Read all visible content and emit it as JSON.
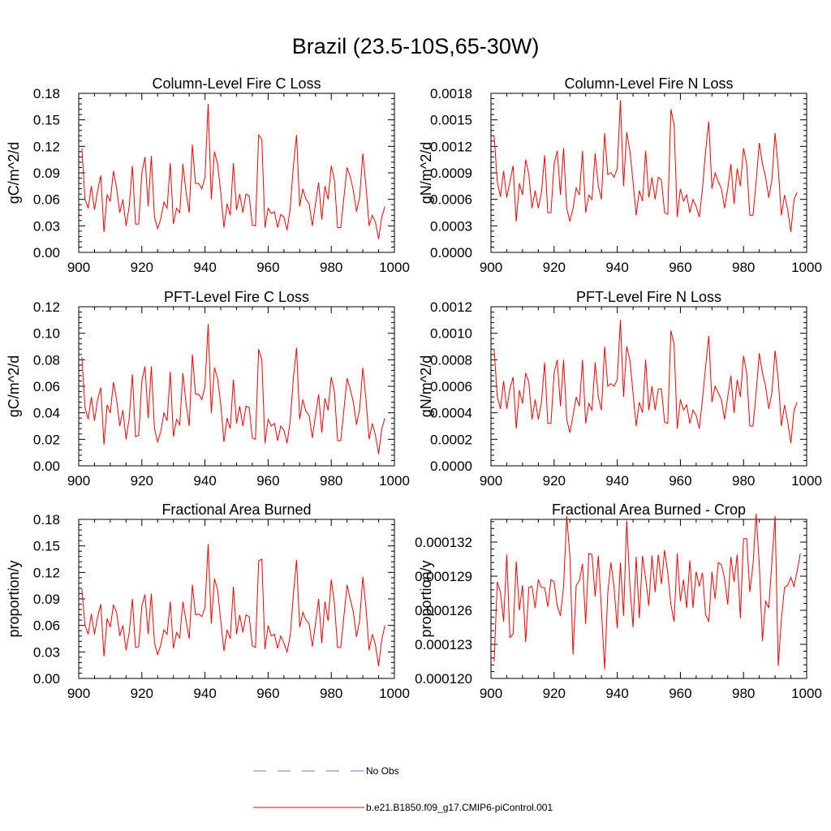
{
  "title": "Brazil (23.5-10S,65-30W)",
  "colors": {
    "series": "#ff0000",
    "obs": "#6b7fb3",
    "axis": "#000000"
  },
  "legend": [
    {
      "label": "No Obs",
      "color": "#6b7fb3",
      "style": "dashed"
    },
    {
      "label": "b.e21.B1850.f09_g17.CMIP6-piControl.001",
      "color": "#ff0000",
      "style": "solid"
    }
  ],
  "chart_data": [
    {
      "type": "line",
      "title": "Column-Level Fire C Loss",
      "ylabel": "gC/m^2/d",
      "xlabel": "",
      "xlim": [
        900,
        1000
      ],
      "ylim": [
        0,
        0.18
      ],
      "xticks": [
        "900",
        "920",
        "940",
        "960",
        "980",
        "1000"
      ],
      "yticks": [
        "0.00",
        "0.03",
        "0.06",
        "0.09",
        "0.12",
        "0.15",
        "0.18"
      ],
      "x_start": 901,
      "values": [
        0.118,
        0.06,
        0.05,
        0.075,
        0.048,
        0.07,
        0.087,
        0.023,
        0.065,
        0.058,
        0.092,
        0.073,
        0.045,
        0.06,
        0.03,
        0.052,
        0.098,
        0.032,
        0.032,
        0.09,
        0.108,
        0.052,
        0.109,
        0.04,
        0.027,
        0.038,
        0.057,
        0.05,
        0.101,
        0.032,
        0.05,
        0.045,
        0.1,
        0.068,
        0.045,
        0.122,
        0.078,
        0.078,
        0.072,
        0.085,
        0.168,
        0.06,
        0.114,
        0.1,
        0.068,
        0.028,
        0.055,
        0.042,
        0.101,
        0.048,
        0.066,
        0.045,
        0.066,
        0.064,
        0.031,
        0.03,
        0.133,
        0.128,
        0.028,
        0.05,
        0.044,
        0.046,
        0.028,
        0.043,
        0.04,
        0.025,
        0.05,
        0.098,
        0.133,
        0.052,
        0.072,
        0.06,
        0.055,
        0.03,
        0.055,
        0.079,
        0.037,
        0.075,
        0.06,
        0.098,
        0.082,
        0.028,
        0.028,
        0.062,
        0.096,
        0.086,
        0.07,
        0.046,
        0.063,
        0.112,
        0.075,
        0.03,
        0.042,
        0.034,
        0.015,
        0.04,
        0.052
      ]
    },
    {
      "type": "line",
      "title": "Column-Level Fire N Loss",
      "ylabel": "gN/m^2/d",
      "xlabel": "",
      "xlim": [
        900,
        1000
      ],
      "ylim": [
        0,
        0.0018
      ],
      "xticks": [
        "900",
        "920",
        "940",
        "960",
        "980",
        "1000"
      ],
      "yticks": [
        "0.0000",
        "0.0003",
        "0.0006",
        "0.0009",
        "0.0012",
        "0.0015",
        "0.0018"
      ],
      "x_start": 901,
      "values": [
        0.00132,
        0.0008,
        0.00063,
        0.00092,
        0.00062,
        0.0008,
        0.00098,
        0.00035,
        0.00078,
        0.00065,
        0.00105,
        0.00088,
        0.0005,
        0.0007,
        0.0005,
        0.00068,
        0.0011,
        0.00045,
        0.00045,
        0.001,
        0.00115,
        0.00065,
        0.00118,
        0.0005,
        0.00035,
        0.0005,
        0.00073,
        0.00065,
        0.00115,
        0.00045,
        0.00065,
        0.0006,
        0.00112,
        0.00075,
        0.0006,
        0.00135,
        0.00088,
        0.0009,
        0.00085,
        0.00095,
        0.00172,
        0.00075,
        0.00136,
        0.00115,
        0.0008,
        0.00042,
        0.0007,
        0.00058,
        0.00115,
        0.00062,
        0.00085,
        0.0006,
        0.00085,
        0.00082,
        0.00045,
        0.00043,
        0.00162,
        0.00145,
        0.0004,
        0.00072,
        0.00058,
        0.00065,
        0.00045,
        0.0006,
        0.00052,
        0.0004,
        0.00072,
        0.00115,
        0.00148,
        0.00072,
        0.0009,
        0.0008,
        0.00072,
        0.0005,
        0.00072,
        0.001,
        0.00055,
        0.00095,
        0.00075,
        0.00118,
        0.001,
        0.00042,
        0.00042,
        0.0008,
        0.00124,
        0.001,
        0.00085,
        0.00062,
        0.00082,
        0.00135,
        0.00095,
        0.00042,
        0.00065,
        0.00048,
        0.00023,
        0.0006,
        0.00068
      ]
    },
    {
      "type": "line",
      "title": "PFT-Level Fire C Loss",
      "ylabel": "gC/m^2/d",
      "xlabel": "",
      "xlim": [
        900,
        1000
      ],
      "ylim": [
        0,
        0.12
      ],
      "xticks": [
        "900",
        "920",
        "940",
        "960",
        "980",
        "1000"
      ],
      "yticks": [
        "0.00",
        "0.02",
        "0.04",
        "0.06",
        "0.08",
        "0.10",
        "0.12"
      ],
      "x_start": 901,
      "values": [
        0.082,
        0.044,
        0.035,
        0.052,
        0.034,
        0.05,
        0.059,
        0.016,
        0.046,
        0.04,
        0.063,
        0.05,
        0.03,
        0.042,
        0.02,
        0.036,
        0.069,
        0.022,
        0.023,
        0.064,
        0.075,
        0.036,
        0.075,
        0.028,
        0.018,
        0.026,
        0.04,
        0.034,
        0.071,
        0.022,
        0.035,
        0.031,
        0.07,
        0.047,
        0.03,
        0.084,
        0.054,
        0.054,
        0.05,
        0.06,
        0.107,
        0.04,
        0.074,
        0.066,
        0.046,
        0.018,
        0.036,
        0.028,
        0.065,
        0.032,
        0.045,
        0.03,
        0.045,
        0.044,
        0.021,
        0.02,
        0.088,
        0.08,
        0.017,
        0.035,
        0.03,
        0.032,
        0.019,
        0.03,
        0.027,
        0.017,
        0.034,
        0.066,
        0.089,
        0.035,
        0.05,
        0.041,
        0.038,
        0.021,
        0.038,
        0.054,
        0.025,
        0.051,
        0.042,
        0.067,
        0.056,
        0.019,
        0.019,
        0.042,
        0.066,
        0.058,
        0.048,
        0.031,
        0.043,
        0.074,
        0.05,
        0.02,
        0.032,
        0.023,
        0.009,
        0.028,
        0.036
      ]
    },
    {
      "type": "line",
      "title": "PFT-Level Fire N Loss",
      "ylabel": "gN/m^2/d",
      "xlabel": "",
      "xlim": [
        900,
        1000
      ],
      "ylim": [
        0,
        0.0012
      ],
      "xticks": [
        "900",
        "920",
        "940",
        "960",
        "980",
        "1000"
      ],
      "yticks": [
        "0.0000",
        "0.0002",
        "0.0004",
        "0.0006",
        "0.0008",
        "0.0010",
        "0.0012"
      ],
      "x_start": 901,
      "values": [
        0.00088,
        0.00052,
        0.00043,
        0.00064,
        0.00043,
        0.00058,
        0.00067,
        0.00028,
        0.00057,
        0.00047,
        0.0007,
        0.00063,
        0.00035,
        0.0005,
        0.00035,
        0.00048,
        0.00078,
        0.00032,
        0.00032,
        0.0007,
        0.0008,
        0.00045,
        0.0008,
        0.00035,
        0.00025,
        0.00038,
        0.00052,
        0.00045,
        0.0008,
        0.00032,
        0.00047,
        0.00042,
        0.00078,
        0.00052,
        0.00042,
        0.0009,
        0.0006,
        0.00062,
        0.0006,
        0.00065,
        0.0011,
        0.00052,
        0.0009,
        0.0008,
        0.00055,
        0.0003,
        0.00048,
        0.0004,
        0.0008,
        0.00042,
        0.0006,
        0.00042,
        0.00058,
        0.00058,
        0.00033,
        0.00032,
        0.00102,
        0.00092,
        0.00028,
        0.0005,
        0.00042,
        0.00046,
        0.00032,
        0.00042,
        0.00038,
        0.00028,
        0.0005,
        0.00075,
        0.00098,
        0.00048,
        0.0006,
        0.00055,
        0.0005,
        0.00035,
        0.00052,
        0.00068,
        0.0004,
        0.00065,
        0.00052,
        0.00083,
        0.0007,
        0.0003,
        0.0003,
        0.00055,
        0.00085,
        0.0007,
        0.0006,
        0.00043,
        0.00055,
        0.00087,
        0.00065,
        0.0003,
        0.00046,
        0.00033,
        0.00017,
        0.00042,
        0.00048
      ]
    },
    {
      "type": "line",
      "title": "Fractional Area Burned",
      "ylabel": "proportion/y",
      "xlabel": "",
      "xlim": [
        900,
        1000
      ],
      "ylim": [
        0,
        0.18
      ],
      "xticks": [
        "900",
        "920",
        "940",
        "960",
        "980",
        "1000"
      ],
      "yticks": [
        "0.00",
        "0.03",
        "0.06",
        "0.09",
        "0.12",
        "0.15",
        "0.18"
      ],
      "x_start": 901,
      "values": [
        0.101,
        0.06,
        0.05,
        0.073,
        0.05,
        0.07,
        0.084,
        0.025,
        0.068,
        0.058,
        0.083,
        0.075,
        0.048,
        0.06,
        0.032,
        0.052,
        0.09,
        0.035,
        0.036,
        0.082,
        0.095,
        0.05,
        0.096,
        0.04,
        0.027,
        0.038,
        0.055,
        0.05,
        0.087,
        0.034,
        0.052,
        0.046,
        0.087,
        0.065,
        0.045,
        0.106,
        0.072,
        0.073,
        0.07,
        0.08,
        0.152,
        0.062,
        0.113,
        0.1,
        0.065,
        0.031,
        0.055,
        0.045,
        0.104,
        0.05,
        0.072,
        0.052,
        0.072,
        0.07,
        0.037,
        0.035,
        0.133,
        0.135,
        0.033,
        0.06,
        0.048,
        0.05,
        0.034,
        0.048,
        0.04,
        0.03,
        0.048,
        0.095,
        0.134,
        0.058,
        0.075,
        0.066,
        0.062,
        0.036,
        0.062,
        0.09,
        0.04,
        0.087,
        0.065,
        0.112,
        0.085,
        0.035,
        0.035,
        0.07,
        0.106,
        0.09,
        0.075,
        0.047,
        0.066,
        0.115,
        0.08,
        0.032,
        0.05,
        0.038,
        0.014,
        0.044,
        0.06
      ]
    },
    {
      "type": "line",
      "title": "Fractional Area Burned - Crop",
      "ylabel": "proportion/y",
      "xlabel": "",
      "xlim": [
        900,
        1000
      ],
      "ylim": [
        0.00012,
        0.000134
      ],
      "xticks": [
        "900",
        "920",
        "940",
        "960",
        "980",
        "1000"
      ],
      "yticks": [
        "0.000120",
        "0.000123",
        "0.000126",
        "0.000129",
        "0.000132"
      ],
      "x_start": 901,
      "values": [
        0.0001215,
        0.0001285,
        0.0001276,
        0.000125,
        0.0001309,
        0.0001236,
        0.0001239,
        0.0001303,
        0.000126,
        0.0001282,
        0.0001232,
        0.000128,
        0.0001281,
        0.0001262,
        0.0001287,
        0.000128,
        0.000128,
        0.0001263,
        0.0001287,
        0.0001285,
        0.0001264,
        0.0001255,
        0.0001281,
        0.0001343,
        0.0001308,
        0.0001221,
        0.0001282,
        0.0001286,
        0.0001301,
        0.0001248,
        0.000131,
        0.0001309,
        0.0001272,
        0.0001308,
        0.000126,
        0.0001208,
        0.0001275,
        0.0001302,
        0.000128,
        0.0001244,
        0.0001302,
        0.0001255,
        0.0001339,
        0.0001282,
        0.0001245,
        0.0001307,
        0.0001253,
        0.0001308,
        0.0001288,
        0.0001264,
        0.0001308,
        0.0001276,
        0.0001309,
        0.0001283,
        0.0001313,
        0.0001293,
        0.0001265,
        0.000125,
        0.000131,
        0.0001268,
        0.0001287,
        0.0001262,
        0.0001304,
        0.0001262,
        0.0001294,
        0.0001281,
        0.0001293,
        0.0001256,
        0.000125,
        0.0001294,
        0.000127,
        0.0001302,
        0.00013,
        0.0001288,
        0.0001265,
        0.0001307,
        0.0001285,
        0.0001309,
        0.0001253,
        0.0001323,
        0.0001323,
        0.0001276,
        0.00013,
        0.0001345,
        0.00013,
        0.0001233,
        0.0001268,
        0.0001262,
        0.0001303,
        0.0001343,
        0.0001211,
        0.0001252,
        0.000128,
        0.0001282,
        0.0001289,
        0.0001281,
        0.0001295,
        0.000131
      ]
    }
  ]
}
